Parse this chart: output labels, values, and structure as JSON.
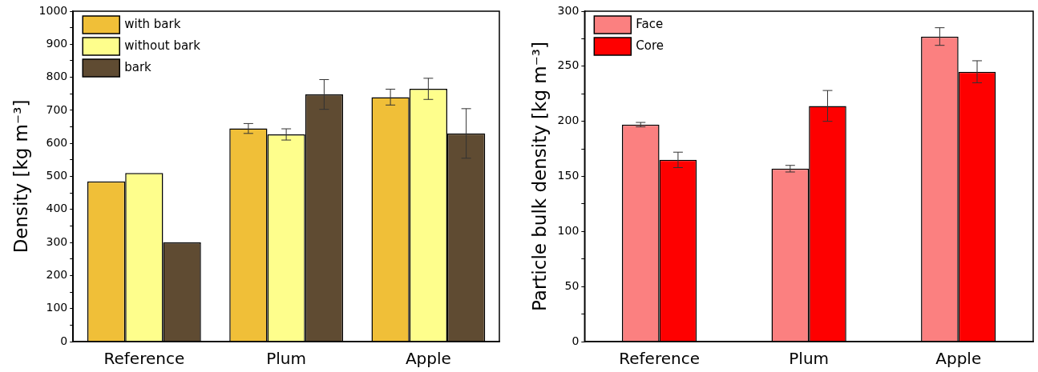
{
  "chart_data": [
    {
      "type": "bar",
      "ylabel": "Density [kg m⁻³]",
      "categories": [
        "Reference",
        "Plum",
        "Apple"
      ],
      "series": [
        {
          "name": "with bark",
          "color": "#f0bf38",
          "values": [
            485,
            645,
            740
          ],
          "errors": [
            null,
            15,
            24
          ]
        },
        {
          "name": "without bark",
          "color": "#fefe8c",
          "values": [
            510,
            627,
            765
          ],
          "errors": [
            null,
            17,
            32
          ]
        },
        {
          "name": "bark",
          "color": "#5f4b32",
          "values": [
            300,
            748,
            630
          ],
          "errors": [
            null,
            45,
            75
          ]
        }
      ],
      "ylim": [
        0,
        1000
      ],
      "yticks": [
        0,
        {
          "value": 50,
          "label": null
        },
        100,
        {
          "value": 150,
          "label": null
        },
        200,
        {
          "value": 250,
          "label": null
        },
        300,
        {
          "value": 350,
          "label": null
        },
        400,
        {
          "value": 450,
          "label": null
        },
        500,
        {
          "value": 550,
          "label": null
        },
        600,
        {
          "value": 650,
          "label": null
        },
        700,
        {
          "value": 750,
          "label": null
        },
        800,
        {
          "value": 850,
          "label": null
        },
        900,
        {
          "value": 950,
          "label": null
        },
        1000
      ],
      "grid": false,
      "legend": "top left"
    },
    {
      "type": "bar",
      "ylabel": "Particle bulk density [kg m⁻³]",
      "categories": [
        "Reference",
        "Plum",
        "Apple"
      ],
      "series": [
        {
          "name": "Face",
          "color": "#fb8080",
          "values": [
            197,
            157,
            277
          ],
          "errors": [
            2,
            3,
            8
          ]
        },
        {
          "name": "Core",
          "color": "#fe0000",
          "values": [
            165,
            214,
            245
          ],
          "errors": [
            7,
            14,
            10
          ]
        }
      ],
      "ylim": [
        0,
        300
      ],
      "yticks": [
        0,
        {
          "value": 25,
          "label": null
        },
        50,
        {
          "value": 75,
          "label": null
        },
        100,
        {
          "value": 125,
          "label": null
        },
        150,
        {
          "value": 175,
          "label": null
        },
        200,
        {
          "value": 225,
          "label": null
        },
        250,
        {
          "value": 275,
          "label": null
        },
        300
      ],
      "grid": false,
      "legend": "top left"
    }
  ]
}
